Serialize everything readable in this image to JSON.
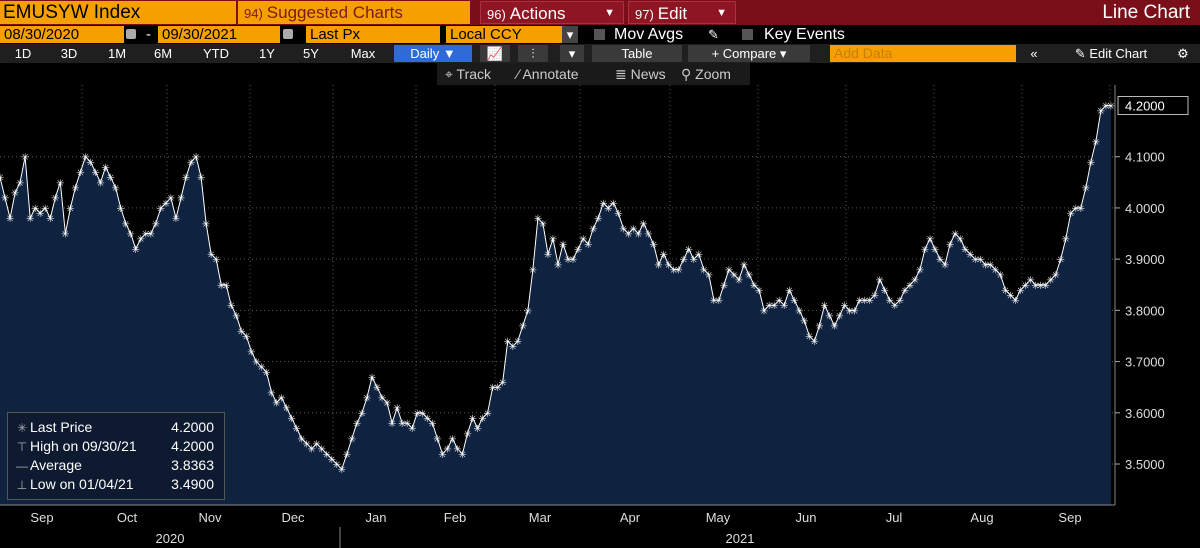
{
  "header": {
    "ticker": "EMUSYW Index",
    "suggested": {
      "num": "94)",
      "label": "Suggested Charts"
    },
    "actions": {
      "num": "96)",
      "label": "Actions"
    },
    "edit": {
      "num": "97)",
      "label": "Edit"
    },
    "title": "Line Chart"
  },
  "settings": {
    "start_date": "08/30/2020",
    "end_date": "09/30/2021",
    "price_field": "Last Px",
    "currency": "Local CCY",
    "mov_avgs": "Mov Avgs",
    "key_events": "Key Events"
  },
  "toolbar": {
    "periods": [
      "1D",
      "3D",
      "1M",
      "6M",
      "YTD",
      "1Y",
      "5Y",
      "Max"
    ],
    "frequency": "Daily",
    "table": "Table",
    "compare": "+ Compare",
    "add_data_placeholder": "Add Data",
    "edit_chart": "Edit Chart"
  },
  "tools": {
    "track": "Track",
    "annotate": "Annotate",
    "news": "News",
    "zoom": "Zoom"
  },
  "legend": {
    "last_price_label": "Last Price",
    "last_price_value": "4.2000",
    "high_label": "High on 09/30/21",
    "high_value": "4.2000",
    "average_label": "Average",
    "average_value": "3.8363",
    "low_label": "Low on 01/04/21",
    "low_value": "3.4900"
  },
  "colors": {
    "accent": "#f5a000",
    "header_bg": "#7a0f1a",
    "area_fill": "#0f2340",
    "line": "#ffffff"
  },
  "chart_data": {
    "type": "area",
    "title": "",
    "ylim": [
      3.42,
      4.24
    ],
    "y_ticks": [
      "3.5000",
      "3.6000",
      "3.7000",
      "3.8000",
      "3.9000",
      "4.0000",
      "4.1000"
    ],
    "last_value_label": "4.2000",
    "x_month_labels": [
      "Sep",
      "Oct",
      "Nov",
      "Dec",
      "Jan",
      "Feb",
      "Mar",
      "Apr",
      "May",
      "Jun",
      "Jul",
      "Aug",
      "Sep"
    ],
    "x_year_labels": [
      "2020",
      "2021"
    ],
    "grid": true,
    "series": [
      {
        "values": [
          4.06,
          4.02,
          3.98,
          4.03,
          4.05,
          4.1,
          3.98,
          4.0,
          3.99,
          4.0,
          3.98,
          4.02,
          4.05,
          3.95,
          4.0,
          4.04,
          4.07,
          4.1,
          4.09,
          4.07,
          4.05,
          4.08,
          4.06,
          4.04,
          4.0,
          3.97,
          3.95,
          3.92,
          3.94,
          3.95,
          3.95,
          3.97,
          4.0,
          4.01,
          4.02,
          3.98,
          4.02,
          4.06,
          4.09,
          4.1,
          4.06,
          3.97,
          3.91,
          3.9,
          3.85,
          3.85,
          3.81,
          3.79,
          3.76,
          3.75,
          3.72,
          3.7,
          3.69,
          3.68,
          3.64,
          3.62,
          3.63,
          3.61,
          3.59,
          3.57,
          3.55,
          3.54,
          3.53,
          3.54,
          3.53,
          3.52,
          3.51,
          3.5,
          3.49,
          3.52,
          3.55,
          3.58,
          3.6,
          3.63,
          3.67,
          3.65,
          3.63,
          3.62,
          3.58,
          3.61,
          3.58,
          3.58,
          3.57,
          3.6,
          3.6,
          3.59,
          3.58,
          3.55,
          3.52,
          3.53,
          3.55,
          3.53,
          3.52,
          3.56,
          3.59,
          3.57,
          3.59,
          3.6,
          3.65,
          3.65,
          3.66,
          3.74,
          3.73,
          3.74,
          3.77,
          3.8,
          3.88,
          3.98,
          3.97,
          3.91,
          3.94,
          3.89,
          3.93,
          3.9,
          3.9,
          3.92,
          3.94,
          3.93,
          3.96,
          3.98,
          4.01,
          4.0,
          4.01,
          3.99,
          3.96,
          3.95,
          3.96,
          3.95,
          3.97,
          3.95,
          3.93,
          3.89,
          3.91,
          3.89,
          3.88,
          3.88,
          3.9,
          3.92,
          3.9,
          3.91,
          3.88,
          3.87,
          3.82,
          3.82,
          3.85,
          3.88,
          3.87,
          3.86,
          3.89,
          3.87,
          3.85,
          3.84,
          3.8,
          3.81,
          3.81,
          3.82,
          3.81,
          3.84,
          3.82,
          3.8,
          3.78,
          3.75,
          3.74,
          3.77,
          3.81,
          3.79,
          3.77,
          3.79,
          3.81,
          3.8,
          3.8,
          3.82,
          3.82,
          3.82,
          3.83,
          3.86,
          3.84,
          3.82,
          3.81,
          3.82,
          3.84,
          3.85,
          3.86,
          3.88,
          3.92,
          3.94,
          3.92,
          3.9,
          3.89,
          3.93,
          3.95,
          3.94,
          3.92,
          3.91,
          3.9,
          3.9,
          3.89,
          3.89,
          3.88,
          3.87,
          3.84,
          3.83,
          3.82,
          3.84,
          3.85,
          3.86,
          3.85,
          3.85,
          3.85,
          3.86,
          3.87,
          3.9,
          3.94,
          3.99,
          4.0,
          4.0,
          4.04,
          4.09,
          4.13,
          4.19,
          4.2,
          4.2
        ]
      }
    ]
  }
}
